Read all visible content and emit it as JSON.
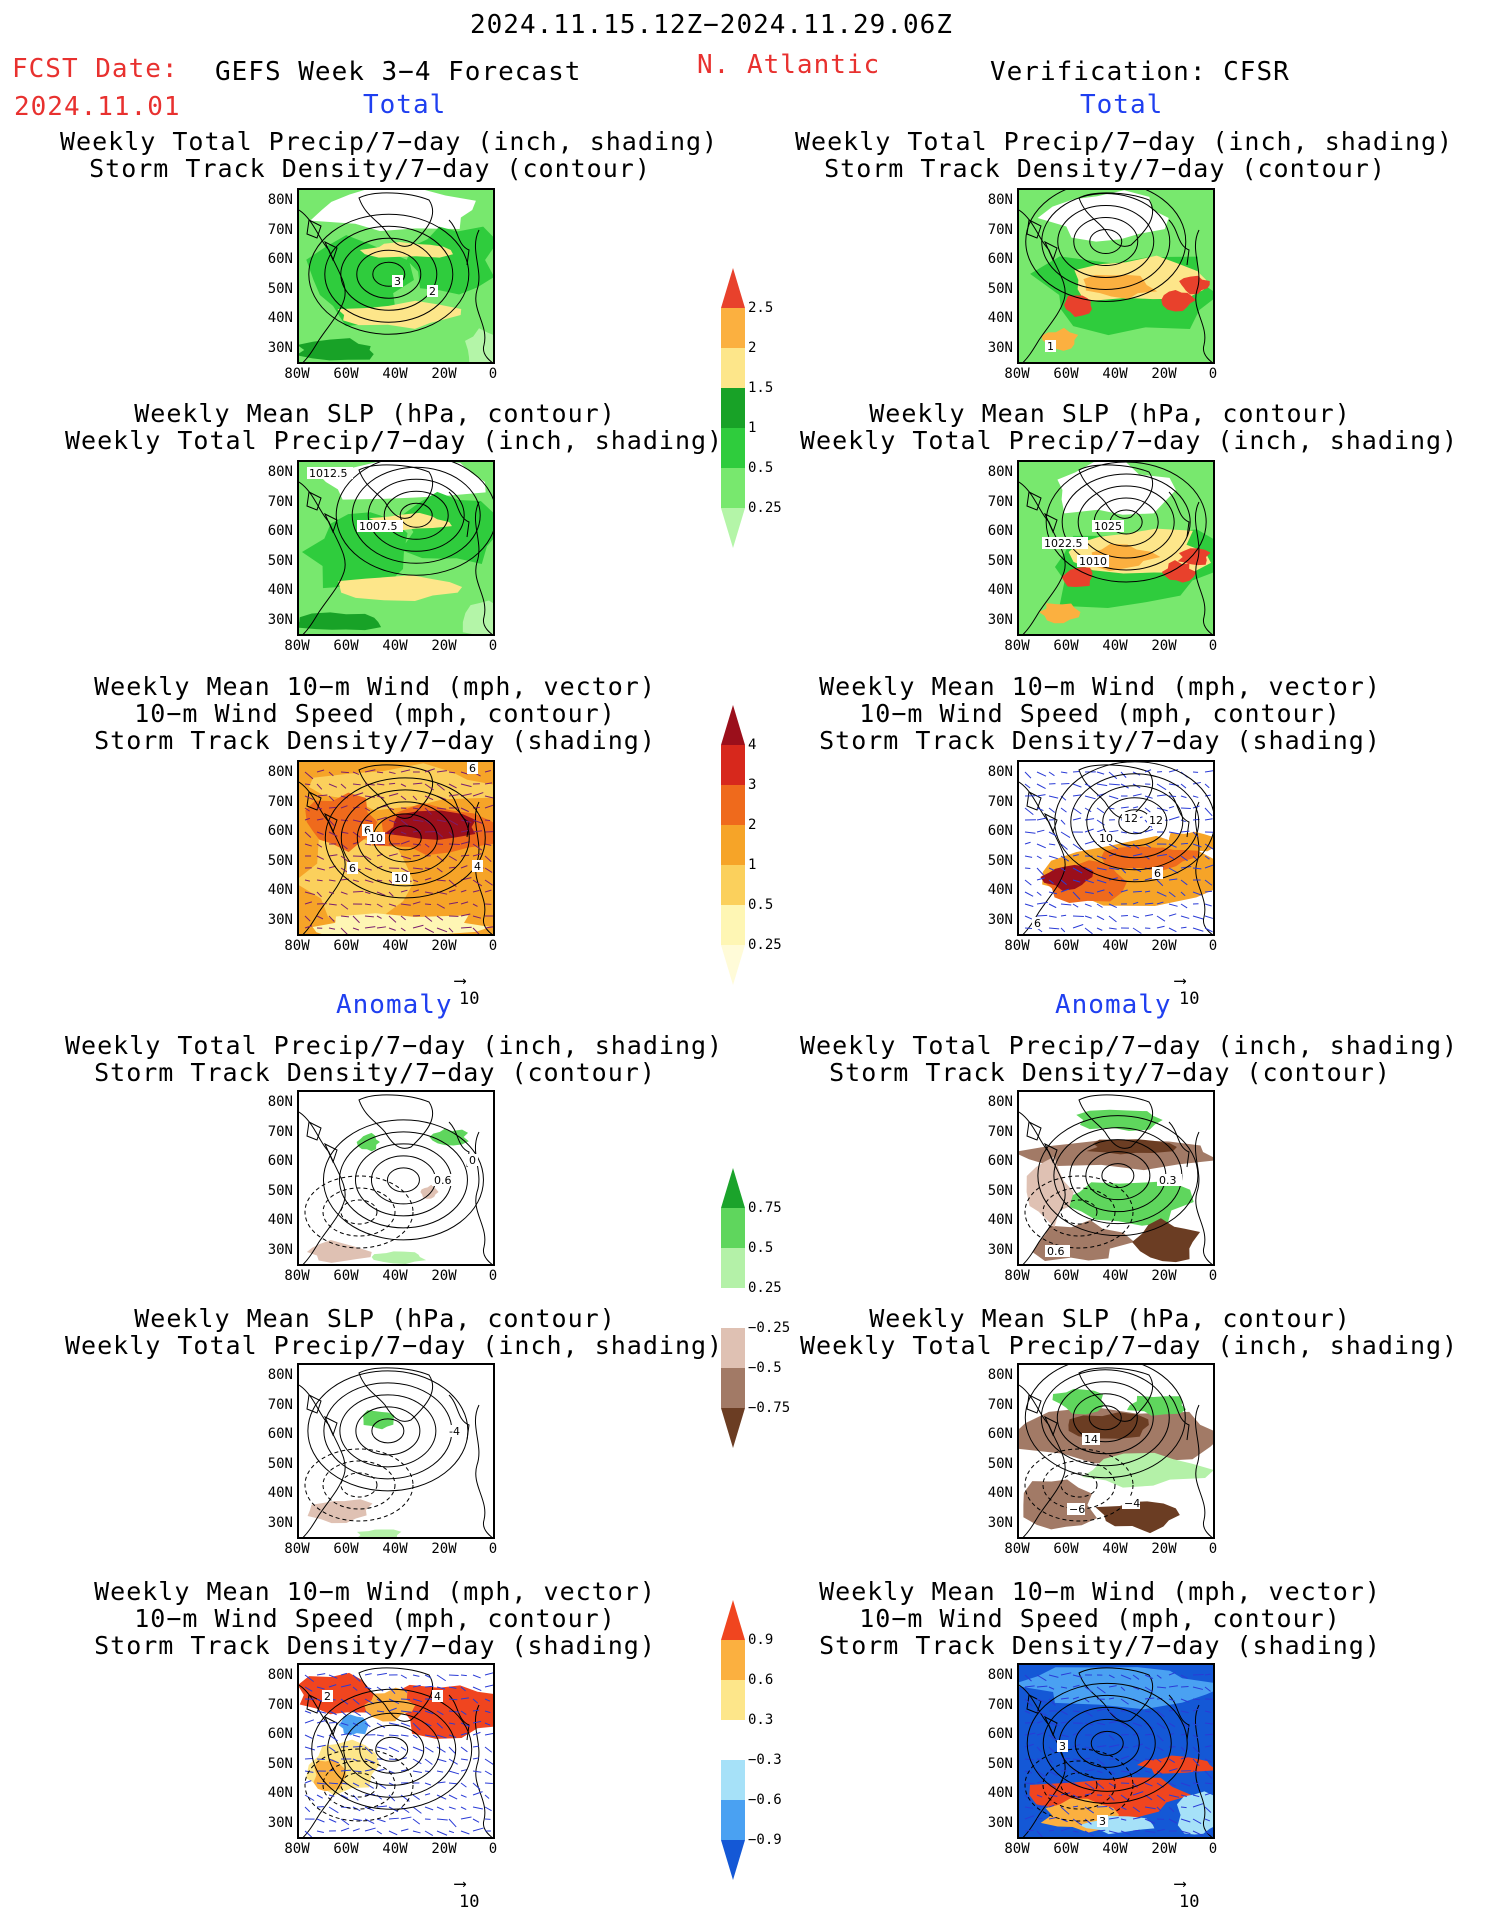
{
  "header": {
    "date_range": "2024.11.15.12Z−2024.11.29.06Z",
    "fcst_label": "FCST Date:",
    "fcst_date": "2024.11.01",
    "model": "GEFS Week 3−4 Forecast",
    "region": "N. Atlantic",
    "verification": "Verification: CFSR"
  },
  "sections": {
    "total": "Total",
    "anomaly": "Anomaly"
  },
  "titles": {
    "precip_track": [
      "Weekly Total Precip/7−day (inch, shading)",
      "Storm Track Density/7−day (contour)"
    ],
    "slp_precip": [
      "Weekly Mean SLP (hPa, contour)",
      "Weekly Total Precip/7−day (inch, shading)"
    ],
    "wind_track": [
      "Weekly Mean 10−m Wind (mph, vector)",
      "10−m Wind Speed (mph, contour)",
      "Storm Track Density/7−day (shading)"
    ]
  },
  "axes": {
    "lat": [
      "80N",
      "70N",
      "60N",
      "50N",
      "40N",
      "30N"
    ],
    "lon": [
      "80W",
      "60W",
      "40W",
      "20W",
      "0"
    ]
  },
  "vector_ref": "10",
  "colorbars": {
    "precip_total": [
      "2.5",
      "2",
      "1.5",
      "1",
      "0.5",
      "0.25"
    ],
    "track_total": [
      "4",
      "3",
      "2",
      "1",
      "0.5",
      "0.25"
    ],
    "precip_anom": [
      "0.75",
      "0.5",
      "0.25",
      "−0.25",
      "−0.5",
      "−0.75"
    ],
    "track_anom": [
      "0.9",
      "0.6",
      "0.3",
      "−0.3",
      "−0.6",
      "−0.9"
    ]
  },
  "contour_labels": {
    "fc_precip_track": [
      "3",
      "2"
    ],
    "fc_slp": [
      "1012.5",
      "1007.5"
    ],
    "fc_wind": [
      "6",
      "6",
      "10",
      "6",
      "10",
      "4"
    ],
    "ob_precip_track": [
      "1"
    ],
    "ob_slp": [
      "1025",
      "1022.5",
      "1010"
    ],
    "ob_wind": [
      "12",
      "12",
      "10",
      "6",
      "6"
    ],
    "fc_anom_precip": [
      "0",
      "0.6"
    ],
    "ob_anom_precip": [
      "0.3",
      "0.6"
    ],
    "fc_anom_slp": [
      "-4"
    ],
    "ob_anom_slp": [
      "14",
      "−6",
      "−4"
    ],
    "fc_anom_wind": [
      "2",
      "4"
    ],
    "ob_anom_wind": [
      "3",
      "3"
    ]
  },
  "colors": {
    "precip": [
      "#b4f5a8",
      "#78e86e",
      "#2fcc3d",
      "#18a227",
      "#fde68a",
      "#fbb040",
      "#e8412c"
    ],
    "track": [
      "#fef6b4",
      "#fbd05c",
      "#f6a428",
      "#ef6a1c",
      "#d7281c",
      "#9b0f1b"
    ],
    "anom_precip": [
      "#6b3d23",
      "#a27a66",
      "#dfc1b3",
      "#ffffff",
      "#b4f1a8",
      "#5fd65d",
      "#1ba32b"
    ],
    "anom_track": [
      "#1458d6",
      "#4aa1f2",
      "#a6e1f8",
      "#ffffff",
      "#fde68a",
      "#fbb040",
      "#f0451f"
    ]
  }
}
